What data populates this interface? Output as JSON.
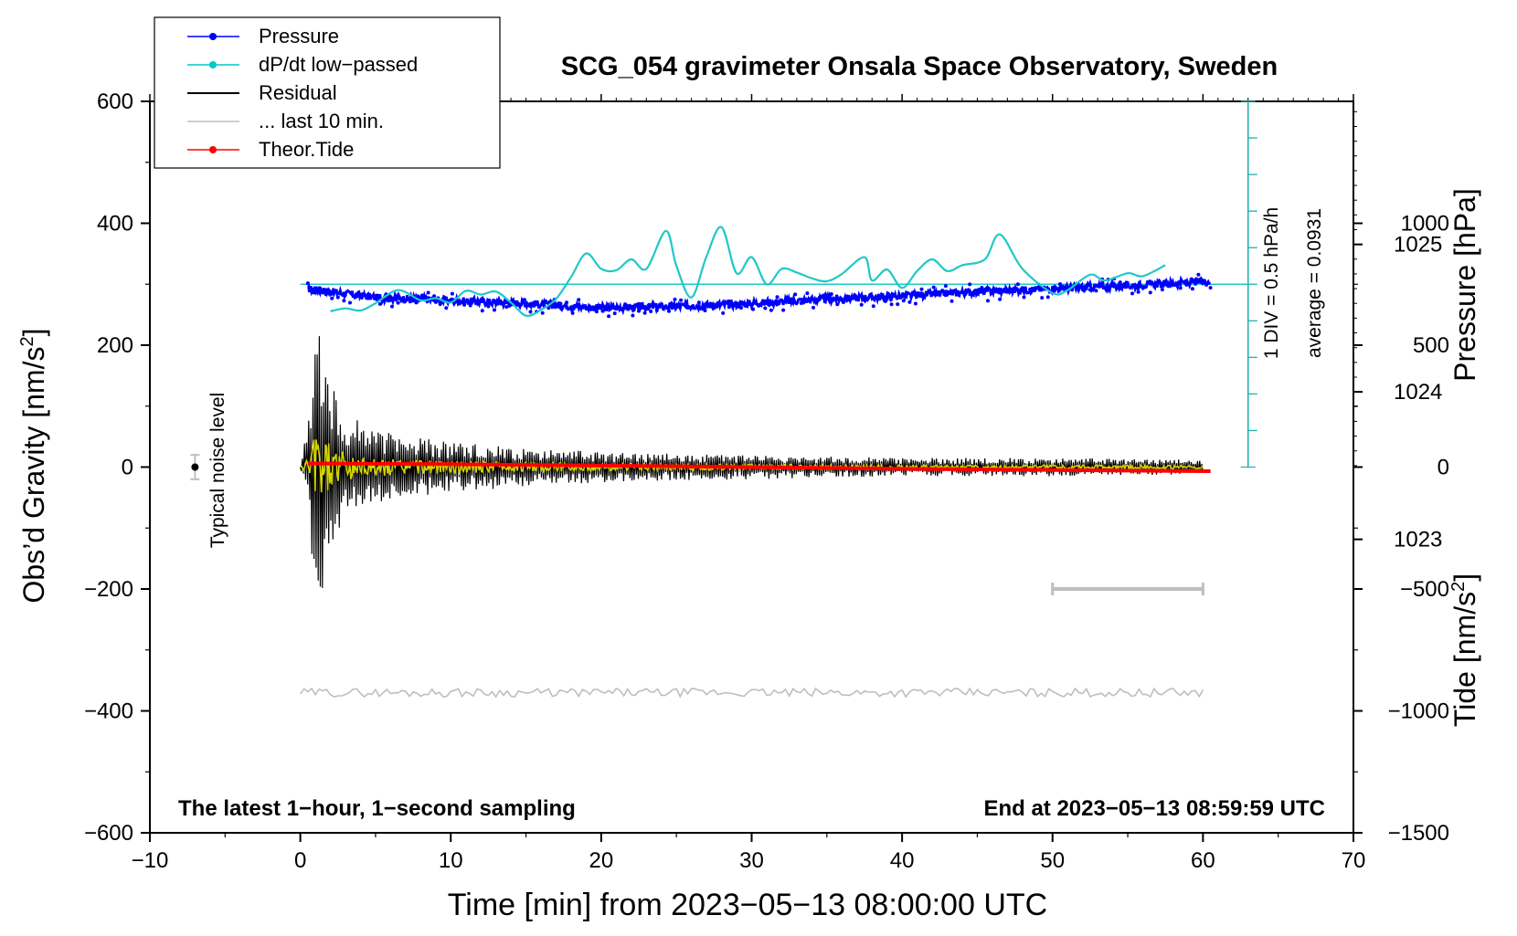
{
  "chart_data": {
    "type": "line",
    "title": "SCG_054 gravimeter Onsala Space Observatory, Sweden",
    "xlabel": "Time [min] from 2023−05−13 08:00:00 UTC",
    "ylabel_left_main": "Obs’d Gravity [nm/s",
    "ylabel_left_sup": "2",
    "ylabel_left_end": "]",
    "ylabel_right_pressure": "Pressure [hPa]",
    "ylabel_right_tide_main": "Tide [nm/s",
    "ylabel_right_tide_sup": "2",
    "ylabel_right_tide_end": "]",
    "xlim": [
      -10,
      70
    ],
    "ylim": [
      -600,
      600
    ],
    "pressure_ylim": [
      1021.01,
      1025.97
    ],
    "tide_ylim": [
      -1500,
      1500
    ],
    "x_ticks": [
      "−10",
      "0",
      "10",
      "20",
      "30",
      "40",
      "50",
      "60",
      "70"
    ],
    "x_tick_values": [
      -10,
      0,
      10,
      20,
      30,
      40,
      50,
      60,
      70
    ],
    "y_ticks": [
      "600",
      "400",
      "200",
      "0",
      "−200",
      "−400",
      "−600"
    ],
    "y_tick_values": [
      600,
      400,
      200,
      0,
      -200,
      -400,
      -600
    ],
    "pressure_ticks": [
      "1025",
      "1024",
      "1023"
    ],
    "pressure_tick_values": [
      1025,
      1024,
      1023
    ],
    "tide_ticks": [
      "1000",
      "500",
      "0",
      "−500",
      "−1000",
      "−1500"
    ],
    "tide_tick_values": [
      1000,
      500,
      0,
      -500,
      -1000,
      -1500
    ],
    "legend": [
      {
        "label": "Pressure",
        "color": "#0000ff",
        "marker": true
      },
      {
        "label": "dP/dt low−passed",
        "color": "#00c8c8",
        "marker": true
      },
      {
        "label": "Residual",
        "color": "#000000",
        "marker": false
      },
      {
        "label": "... last 10 min.",
        "color": "#bebebe",
        "marker": false
      },
      {
        "label": "Theor.Tide",
        "color": "#ff0000",
        "marker": true
      }
    ],
    "colors": {
      "pressure": "#0000ff",
      "dpdt": "#20c8c8",
      "residual": "#000000",
      "last10": "#d4d400",
      "tide": "#ff0000",
      "grey": "#bebebe",
      "scale": "#20b0b0"
    },
    "series": [
      {
        "name": "Pressure",
        "unit": "hPa",
        "x": [
          0.5,
          5,
          10,
          15,
          20,
          25,
          30,
          35,
          40,
          45,
          50,
          55,
          60.5
        ],
        "values": [
          1024.7,
          1024.64,
          1024.62,
          1024.6,
          1024.57,
          1024.58,
          1024.6,
          1024.63,
          1024.65,
          1024.68,
          1024.7,
          1024.72,
          1024.75
        ]
      },
      {
        "name": "dP/dt low−passed",
        "unit": "hPa/h",
        "x": [
          2,
          3,
          4,
          5,
          6.5,
          8,
          9,
          10,
          11,
          12,
          13,
          14,
          15,
          16,
          17,
          18,
          19,
          20,
          21,
          22,
          23,
          24.3,
          25,
          26,
          27,
          28,
          29,
          30,
          31,
          32,
          33,
          34,
          35,
          36,
          37.5,
          38,
          39,
          40,
          41,
          42,
          43,
          44,
          45.5,
          46.5,
          48,
          50,
          51,
          52.5,
          53.5,
          55,
          56,
          57.5
        ],
        "values": [
          -0.37,
          -0.33,
          -0.36,
          -0.26,
          -0.08,
          -0.22,
          -0.19,
          -0.25,
          -0.09,
          -0.14,
          -0.1,
          -0.25,
          -0.43,
          -0.35,
          -0.2,
          0.1,
          0.42,
          0.21,
          0.19,
          0.34,
          0.21,
          0.73,
          0.25,
          -0.18,
          0.38,
          0.78,
          0.15,
          0.37,
          0.0,
          0.21,
          0.16,
          0.08,
          0.04,
          0.14,
          0.37,
          0.05,
          0.2,
          -0.05,
          0.18,
          0.34,
          0.18,
          0.26,
          0.34,
          0.68,
          0.21,
          -0.12,
          -0.08,
          0.13,
          0.05,
          0.15,
          0.11,
          0.26
        ]
      },
      {
        "name": "Residual",
        "unit": "nm/s2",
        "x": [
          0,
          0.5,
          1,
          1.5,
          2,
          3,
          5,
          10,
          20,
          30,
          40,
          50,
          60
        ],
        "values": [
          0,
          70,
          225,
          -225,
          160,
          90,
          60,
          40,
          25,
          20,
          15,
          15,
          12
        ]
      },
      {
        "name": "Theor.Tide",
        "unit": "nm/s2",
        "x": [
          0.5,
          10,
          20,
          30,
          40,
          50,
          60.5
        ],
        "values": [
          15,
          12,
          6,
          0,
          -7,
          -12,
          -17
        ]
      }
    ],
    "dpdt_scale_label": "1 DIV = 0.5 hPa/h",
    "dpdt_average_label": "average = 0.0931",
    "noise_label": "Typical noise level",
    "noise_x": -7,
    "noise_halfrange": 20,
    "last10_span": [
      50,
      60
    ],
    "footer_left": "The latest 1−hour, 1−second sampling",
    "footer_right": "End at 2023−05−13 08:59:59 UTC"
  }
}
